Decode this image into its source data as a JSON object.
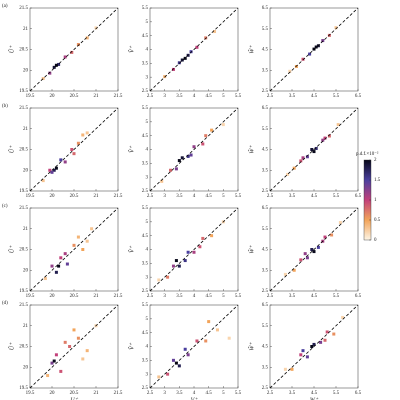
{
  "chart_data": [
    {
      "type": "scatter",
      "panel_label": "(a)",
      "ylabel": "Û⁺",
      "xlim": [
        19.5,
        21.5
      ],
      "ylim": [
        19.5,
        21.5
      ],
      "xticks": [
        19.5,
        20,
        20.5,
        21,
        21.5
      ],
      "yticks": [
        19.5,
        20,
        20.5,
        21,
        21.5
      ],
      "x": [
        19.8,
        19.95,
        20.05,
        20.15,
        20.3,
        20.45,
        20.6,
        20.8,
        21.0,
        20.1
      ],
      "values": [
        19.8,
        19.93,
        20.07,
        20.14,
        20.32,
        20.43,
        20.62,
        20.78,
        21.02,
        20.12
      ],
      "density": [
        0.3,
        1.2,
        1.9,
        1.7,
        1.1,
        0.8,
        0.6,
        0.4,
        0.2,
        2.0
      ]
    },
    {
      "type": "scatter",
      "ylabel": "V̂⁺",
      "xlim": [
        2.5,
        5.5
      ],
      "ylim": [
        2.5,
        5.5
      ],
      "xticks": [
        2.5,
        3,
        3.5,
        4,
        4.5,
        5,
        5.5
      ],
      "yticks": [
        2.5,
        3,
        3.5,
        4,
        4.5,
        5,
        5.5
      ],
      "x": [
        3,
        3.3,
        3.5,
        3.7,
        3.9,
        4.1,
        4.4,
        4.7,
        3.6,
        3.8
      ],
      "values": [
        3.02,
        3.28,
        3.52,
        3.68,
        3.92,
        4.08,
        4.42,
        4.65,
        3.62,
        3.79
      ],
      "density": [
        0.4,
        1.0,
        1.6,
        2.0,
        1.5,
        1.0,
        0.7,
        0.3,
        1.9,
        1.8
      ]
    },
    {
      "type": "scatter",
      "ylabel": "Ŵ⁺",
      "xlim": [
        2.5,
        6.5
      ],
      "ylim": [
        2.5,
        6.5
      ],
      "xticks": [
        2.5,
        3.5,
        4.5,
        5.5,
        6.5
      ],
      "yticks": [
        2.5,
        3.5,
        4.5,
        5.5,
        6.5
      ],
      "x": [
        3.4,
        3.7,
        4.0,
        4.3,
        4.5,
        4.7,
        4.9,
        5.2,
        5.5,
        4.6
      ],
      "values": [
        3.45,
        3.68,
        4.03,
        4.28,
        4.52,
        4.68,
        4.93,
        5.18,
        5.55,
        4.62
      ],
      "density": [
        0.2,
        0.5,
        0.9,
        1.5,
        2.0,
        1.9,
        1.3,
        0.8,
        0.3,
        2.0
      ]
    },
    {
      "type": "scatter",
      "panel_label": "(b)",
      "ylabel": "Û⁺",
      "xlim": [
        19.5,
        21.5
      ],
      "ylim": [
        19.5,
        21.5
      ],
      "xticks": [
        19.5,
        20,
        20.5,
        21,
        21.5
      ],
      "yticks": [
        19.5,
        20,
        20.5,
        21,
        21.5
      ],
      "x": [
        19.8,
        19.95,
        20.05,
        20.2,
        20.3,
        20.45,
        20.6,
        20.8,
        20.1,
        20.5,
        20.0,
        20.7
      ],
      "values": [
        19.75,
        20.0,
        20.0,
        20.25,
        20.2,
        20.5,
        20.65,
        20.9,
        20.05,
        20.4,
        19.95,
        20.85
      ],
      "density": [
        0.3,
        1.0,
        1.8,
        1.5,
        1.2,
        0.9,
        0.6,
        0.3,
        2.0,
        0.8,
        1.4,
        0.4
      ]
    },
    {
      "type": "scatter",
      "ylabel": "V̂⁺",
      "xlim": [
        2.5,
        5.5
      ],
      "ylim": [
        2.5,
        5.5
      ],
      "xticks": [
        2.5,
        3,
        3.5,
        4,
        4.5,
        5,
        5.5
      ],
      "yticks": [
        2.5,
        3,
        3.5,
        4,
        4.5,
        5,
        5.5
      ],
      "x": [
        2.9,
        3.2,
        3.4,
        3.6,
        3.8,
        4.0,
        4.3,
        4.6,
        5.0,
        3.5,
        3.9,
        4.4
      ],
      "values": [
        2.85,
        3.25,
        3.3,
        3.7,
        3.75,
        4.1,
        4.2,
        4.7,
        4.9,
        3.6,
        3.8,
        4.5
      ],
      "density": [
        0.3,
        0.8,
        1.3,
        1.9,
        1.6,
        1.2,
        0.9,
        0.5,
        0.2,
        2.0,
        1.4,
        0.7
      ]
    },
    {
      "type": "scatter",
      "ylabel": "Ŵ⁺",
      "xlim": [
        2.5,
        6.5
      ],
      "ylim": [
        2.5,
        6.5
      ],
      "xticks": [
        2.5,
        3.5,
        4.5,
        5.5,
        6.5
      ],
      "yticks": [
        2.5,
        3.5,
        4.5,
        5.5,
        6.5
      ],
      "x": [
        3.3,
        3.6,
        3.9,
        4.2,
        4.4,
        4.6,
        4.9,
        5.2,
        5.6,
        4.5,
        4.0,
        5.0
      ],
      "values": [
        3.3,
        3.6,
        3.95,
        4.15,
        4.5,
        4.55,
        4.95,
        5.15,
        5.7,
        4.4,
        4.1,
        5.05
      ],
      "density": [
        0.2,
        0.5,
        0.9,
        1.4,
        1.9,
        1.7,
        1.2,
        0.8,
        0.3,
        2.0,
        1.1,
        1.0
      ]
    },
    {
      "type": "scatter",
      "panel_label": "(c)",
      "ylabel": "Û⁺",
      "xlim": [
        19.5,
        21.5
      ],
      "ylim": [
        19.5,
        21.5
      ],
      "xticks": [
        19.5,
        20,
        20.5,
        21,
        21.5
      ],
      "yticks": [
        19.5,
        20,
        20.5,
        21,
        21.5
      ],
      "x": [
        19.85,
        20.0,
        20.1,
        20.2,
        20.35,
        20.5,
        20.7,
        20.9,
        20.15,
        20.6,
        20.3,
        20.8
      ],
      "values": [
        19.8,
        20.1,
        19.95,
        20.3,
        20.15,
        20.6,
        20.5,
        21.0,
        20.1,
        20.8,
        20.4,
        20.7
      ],
      "density": [
        0.3,
        1.2,
        1.8,
        1.0,
        1.4,
        0.6,
        0.5,
        0.3,
        2.0,
        0.4,
        1.1,
        0.3
      ]
    },
    {
      "type": "scatter",
      "ylabel": "V̂⁺",
      "xlim": [
        2.5,
        5.5
      ],
      "ylim": [
        2.5,
        5.5
      ],
      "xticks": [
        2.5,
        3,
        3.5,
        4,
        4.5,
        5,
        5.5
      ],
      "yticks": [
        2.5,
        3,
        3.5,
        4,
        4.5,
        5,
        5.5
      ],
      "x": [
        2.8,
        3.1,
        3.3,
        3.5,
        3.8,
        4.0,
        4.3,
        4.6,
        5.0,
        3.4,
        3.7,
        4.2
      ],
      "values": [
        2.9,
        3.0,
        3.4,
        3.4,
        3.9,
        3.9,
        4.4,
        4.5,
        5.0,
        3.6,
        3.6,
        4.1
      ],
      "density": [
        0.2,
        0.7,
        1.2,
        1.8,
        1.5,
        1.1,
        0.8,
        0.5,
        0.2,
        2.0,
        1.6,
        0.9
      ]
    },
    {
      "type": "scatter",
      "ylabel": "Ŵ⁺",
      "xlim": [
        2.5,
        6.5
      ],
      "ylim": [
        2.5,
        6.5
      ],
      "xticks": [
        2.5,
        3.5,
        4.5,
        5.5,
        6.5
      ],
      "yticks": [
        2.5,
        3.5,
        4.5,
        5.5,
        6.5
      ],
      "x": [
        3.2,
        3.6,
        3.9,
        4.2,
        4.4,
        4.7,
        5.0,
        5.3,
        5.7,
        4.5,
        4.1,
        4.9
      ],
      "values": [
        3.3,
        3.5,
        4.0,
        4.1,
        4.5,
        4.6,
        5.1,
        5.2,
        5.8,
        4.4,
        4.3,
        4.9
      ],
      "density": [
        0.2,
        0.5,
        0.9,
        1.3,
        1.8,
        1.5,
        1.0,
        0.6,
        0.2,
        2.0,
        1.2,
        1.1
      ]
    },
    {
      "type": "scatter",
      "panel_label": "(d)",
      "ylabel": "Û⁺",
      "xlabel": "U⁺",
      "xlim": [
        19.5,
        21.5
      ],
      "ylim": [
        19.5,
        21.5
      ],
      "xticks": [
        19.5,
        20,
        20.5,
        21,
        21.5
      ],
      "yticks": [
        19.5,
        20,
        20.5,
        21,
        21.5
      ],
      "x": [
        19.9,
        20.0,
        20.1,
        20.2,
        20.4,
        20.6,
        20.8,
        21.0,
        20.05,
        20.5,
        20.3,
        20.7
      ],
      "values": [
        19.8,
        20.1,
        20.3,
        19.9,
        20.5,
        20.7,
        20.4,
        21.0,
        20.15,
        20.9,
        20.6,
        20.2
      ],
      "density": [
        0.4,
        1.3,
        1.0,
        0.9,
        0.8,
        0.6,
        0.4,
        0.2,
        2.0,
        0.5,
        0.7,
        0.3
      ]
    },
    {
      "type": "scatter",
      "ylabel": "V̂⁺",
      "xlabel": "V⁺",
      "xlim": [
        2.5,
        5.5
      ],
      "ylim": [
        2.5,
        5.5
      ],
      "xticks": [
        2.5,
        3,
        3.5,
        4,
        4.5,
        5,
        5.5
      ],
      "yticks": [
        2.5,
        3,
        3.5,
        4,
        4.5,
        5,
        5.5
      ],
      "x": [
        2.8,
        3.1,
        3.3,
        3.5,
        3.8,
        4.1,
        4.4,
        4.8,
        5.2,
        3.4,
        3.7,
        4.5
      ],
      "values": [
        2.9,
        3.0,
        3.5,
        3.3,
        3.7,
        4.2,
        4.2,
        4.6,
        4.3,
        3.4,
        3.9,
        4.9
      ],
      "density": [
        0.3,
        0.9,
        1.4,
        1.8,
        1.3,
        0.9,
        0.6,
        0.3,
        0.2,
        2.0,
        1.5,
        0.5
      ]
    },
    {
      "type": "scatter",
      "ylabel": "Ŵ⁺",
      "xlabel": "W⁺",
      "xlim": [
        2.5,
        6.5
      ],
      "ylim": [
        2.5,
        6.5
      ],
      "xticks": [
        2.5,
        3.5,
        4.5,
        5.5,
        6.5
      ],
      "yticks": [
        2.5,
        3.5,
        4.5,
        5.5,
        6.5
      ],
      "x": [
        3.2,
        3.5,
        3.9,
        4.2,
        4.5,
        4.8,
        5.1,
        5.4,
        5.8,
        4.4,
        4.0,
        5.0
      ],
      "values": [
        3.4,
        3.4,
        4.1,
        4.0,
        4.6,
        4.7,
        5.2,
        5.1,
        5.9,
        4.5,
        4.3,
        4.8
      ],
      "density": [
        0.2,
        0.5,
        1.0,
        1.4,
        1.8,
        1.3,
        0.9,
        0.6,
        0.2,
        2.0,
        1.5,
        0.8
      ]
    },
    {
      "type": "colorbar",
      "title": "p.d.f.×10⁻²",
      "lim": [
        0,
        2
      ],
      "ticks": [
        0,
        0.5,
        1,
        1.5,
        2
      ]
    }
  ]
}
